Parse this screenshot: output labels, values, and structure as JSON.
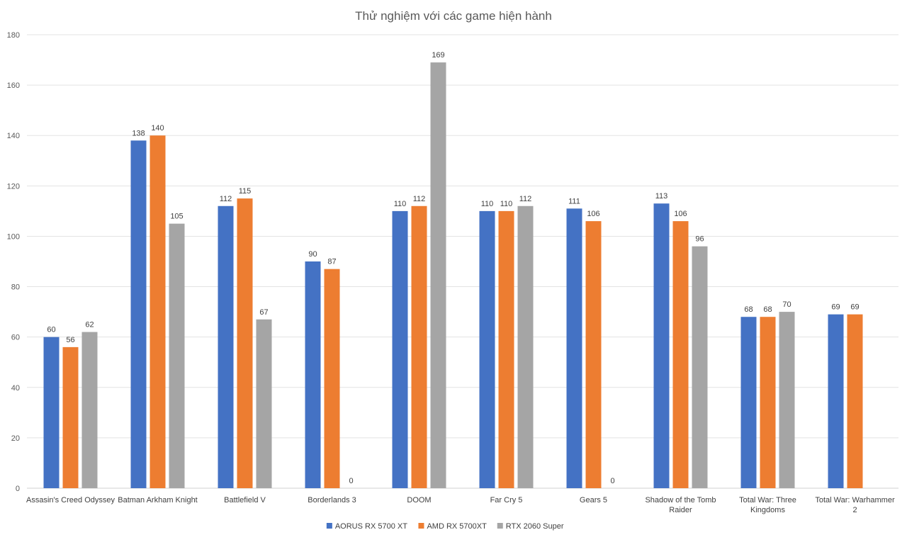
{
  "chart_data": {
    "type": "bar",
    "title": "Thử nghiệm với các game hiện hành",
    "xlabel": "",
    "ylabel": "",
    "ylim": [
      0,
      180
    ],
    "yticks": [
      0,
      20,
      40,
      60,
      80,
      100,
      120,
      140,
      160,
      180
    ],
    "grid": true,
    "legend_position": "bottom",
    "categories": [
      [
        "Assasin's Creed Odyssey"
      ],
      [
        "Batman Arkham Knight"
      ],
      [
        "Battlefield V"
      ],
      [
        "Borderlands 3"
      ],
      [
        "DOOM"
      ],
      [
        "Far Cry 5"
      ],
      [
        "Gears 5"
      ],
      [
        "Shadow of the Tomb",
        "Raider"
      ],
      [
        "Total War: Three",
        "Kingdoms"
      ],
      [
        "Total War: Warhammer",
        "2"
      ]
    ],
    "series": [
      {
        "name": "AORUS RX 5700 XT",
        "color": "#4472C4",
        "values": [
          60,
          138,
          112,
          90,
          110,
          110,
          111,
          113,
          68,
          69
        ]
      },
      {
        "name": "AMD RX 5700XT",
        "color": "#ED7D31",
        "values": [
          56,
          140,
          115,
          87,
          112,
          110,
          106,
          106,
          68,
          69
        ]
      },
      {
        "name": "RTX 2060 Super",
        "color": "#A5A5A5",
        "values": [
          62,
          105,
          67,
          0,
          169,
          112,
          0,
          96,
          70,
          null
        ]
      }
    ]
  }
}
